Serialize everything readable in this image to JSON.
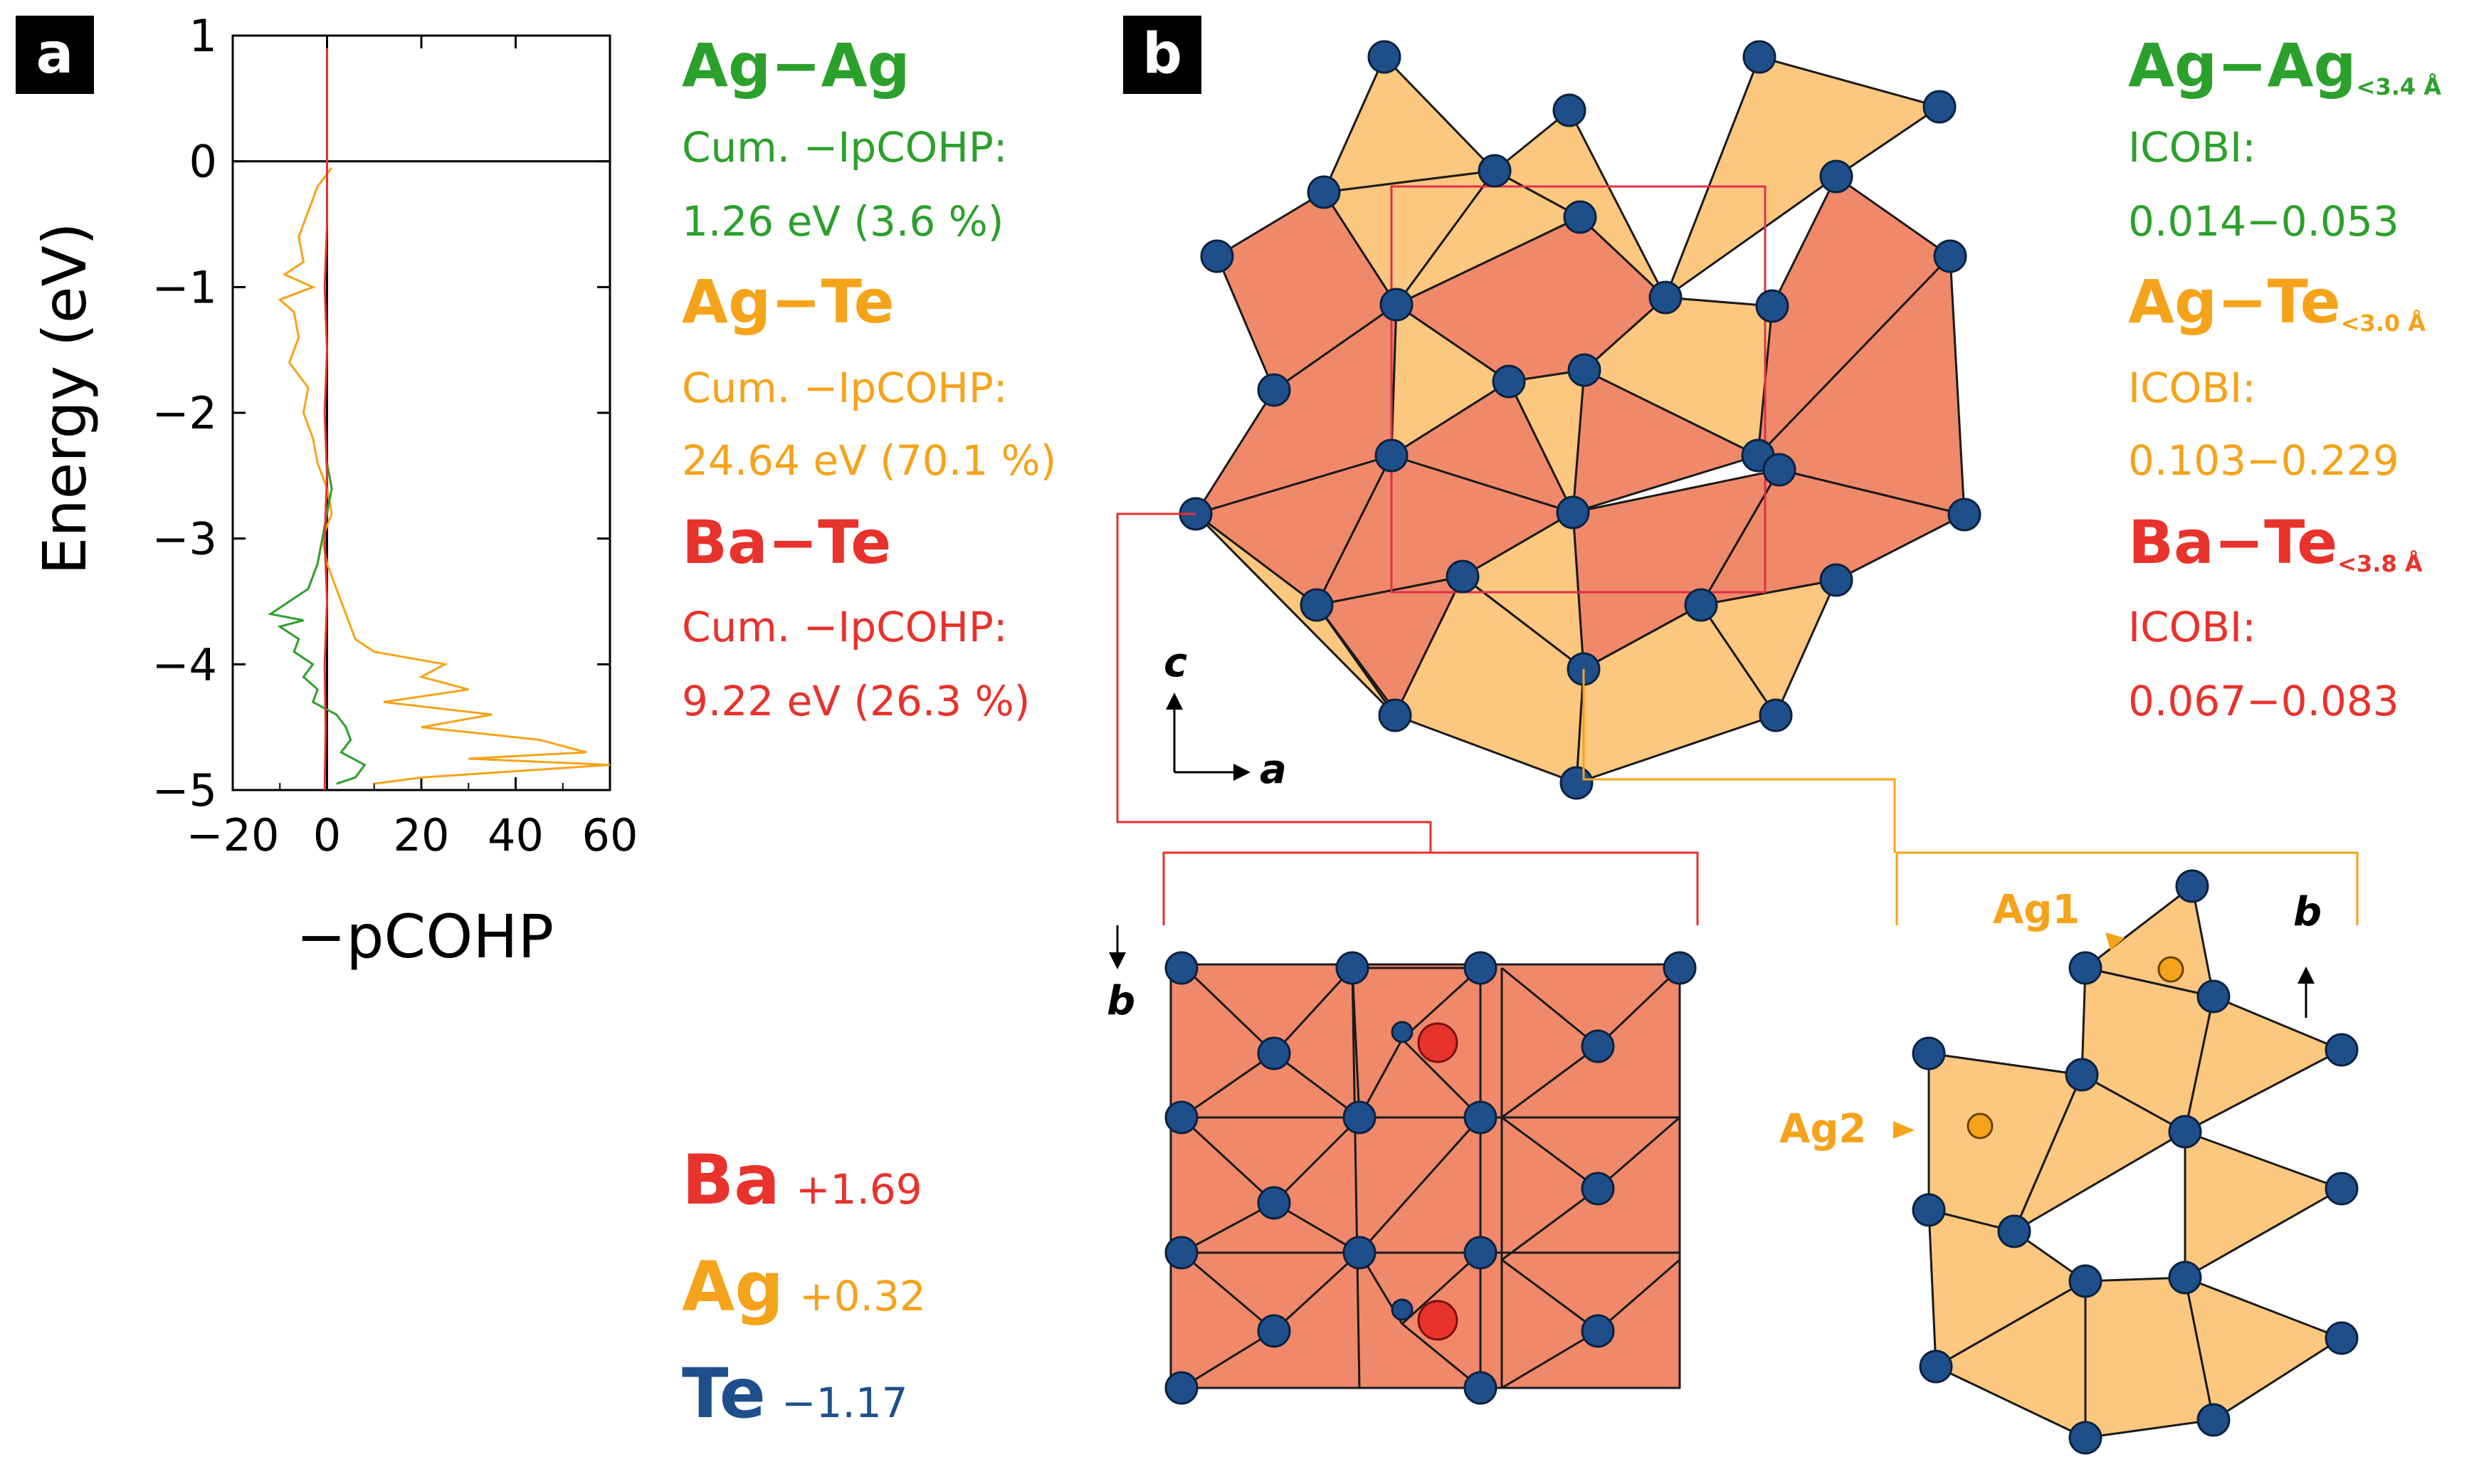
{
  "panels": {
    "a": "a",
    "b": "b"
  },
  "colors": {
    "agag": "#2ca02c",
    "agte": "#f5a31a",
    "bate": "#e8322c",
    "te": "#1f4f8b",
    "poly_red": "#f0896a",
    "poly_orange": "#fcc77e"
  },
  "chart_data": {
    "type": "line",
    "xlabel": "−pCOHP",
    "ylabel": "Energy (eV)",
    "xlim": [
      -20,
      60
    ],
    "ylim": [
      -5,
      1
    ],
    "xticks": [
      "−20",
      "0",
      "20",
      "40",
      "60"
    ],
    "yticks": [
      "1",
      "0",
      "−1",
      "−2",
      "−3",
      "−4",
      "−5"
    ],
    "series": [
      {
        "name": "Ag−Te",
        "color": "#f5a31a",
        "y": [
          -0.05,
          -0.2,
          -0.4,
          -0.6,
          -0.8,
          -0.9,
          -1.0,
          -1.1,
          -1.2,
          -1.4,
          -1.6,
          -1.8,
          -2.0,
          -2.2,
          -2.4,
          -2.6,
          -2.8,
          -3.0,
          -3.2,
          -3.4,
          -3.6,
          -3.8,
          -3.9,
          -4.0,
          -4.1,
          -4.2,
          -4.3,
          -4.4,
          -4.5,
          -4.6,
          -4.7,
          -4.75,
          -4.8,
          -4.85,
          -4.9,
          -4.95
        ],
        "x": [
          1,
          -2,
          -4,
          -6,
          -5,
          -9,
          -3,
          -10,
          -7,
          -6,
          -8,
          -4,
          -5,
          -3,
          -2,
          0,
          1,
          -1,
          0,
          2,
          4,
          6,
          10,
          25,
          20,
          30,
          12,
          35,
          20,
          45,
          55,
          30,
          60,
          40,
          20,
          10
        ]
      },
      {
        "name": "Ag−Ag",
        "color": "#2ca02c",
        "y": [
          -2.4,
          -2.6,
          -2.8,
          -3.0,
          -3.2,
          -3.4,
          -3.5,
          -3.6,
          -3.65,
          -3.7,
          -3.8,
          -3.9,
          -4.0,
          -4.1,
          -4.2,
          -4.3,
          -4.4,
          -4.5,
          -4.6,
          -4.7,
          -4.8,
          -4.9,
          -4.95
        ],
        "x": [
          0,
          1,
          0,
          -1,
          -2,
          -4,
          -8,
          -12,
          -5,
          -10,
          -6,
          -7,
          -3,
          -5,
          -2,
          -3,
          2,
          4,
          5,
          3,
          8,
          6,
          2
        ]
      },
      {
        "name": "Ba−Te",
        "color": "#e8322c",
        "y": [
          0.9,
          0.5,
          0.0,
          -0.5,
          -1.0,
          -1.5,
          -2.0,
          -2.5,
          -3.0,
          -3.5,
          -4.0,
          -4.5,
          -5.0
        ],
        "x": [
          0,
          0,
          0,
          0,
          -0.5,
          0,
          -0.5,
          0,
          -0.5,
          0,
          -0.5,
          -0.3,
          -0.5
        ]
      }
    ]
  },
  "bonds_a": [
    {
      "title": "Ag−Ag",
      "label": "Cum. −IpCOHP:",
      "value": "1.26 eV (3.6 %)"
    },
    {
      "title": "Ag−Te",
      "label": "Cum. −IpCOHP:",
      "value": "24.64 eV (70.1 %)"
    },
    {
      "title": "Ba−Te",
      "label": "Cum. −IpCOHP:",
      "value": "9.22 eV (26.3 %)"
    }
  ],
  "bonds_b": [
    {
      "title": "Ag−Ag",
      "sub": "<3.4 Å",
      "label": "ICOBI:",
      "value": "0.014−0.053"
    },
    {
      "title": "Ag−Te",
      "sub": "<3.0 Å",
      "label": "ICOBI:",
      "value": "0.103−0.229"
    },
    {
      "title": "Ba−Te",
      "sub": "<3.8 Å",
      "label": "ICOBI:",
      "value": "0.067−0.083"
    }
  ],
  "charges": [
    {
      "element": "Ba",
      "value": "+1.69"
    },
    {
      "element": "Ag",
      "value": "+0.32"
    },
    {
      "element": "Te",
      "value": "−1.17"
    }
  ],
  "axes_labels": {
    "c": "c",
    "a": "a",
    "b1": "b",
    "b2": "b"
  },
  "sites": {
    "ag1": "Ag1",
    "ag2": "Ag2"
  }
}
